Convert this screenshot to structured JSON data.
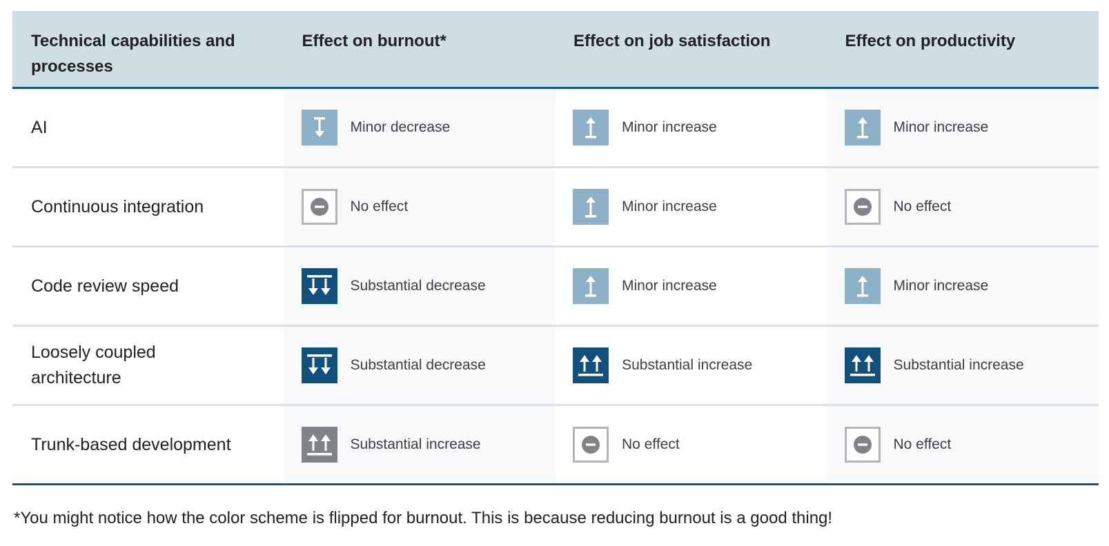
{
  "header": {
    "col1": "Technical capabilities and processes",
    "col2": "Effect on burnout*",
    "col3": "Effect on job satisfaction",
    "col4": "Effect on productivity"
  },
  "rows": [
    {
      "label": "AI",
      "burnout": {
        "text": "Minor decrease",
        "icon": "minor-decrease-icon",
        "color": "#8cb1c6"
      },
      "satisfaction": {
        "text": "Minor increase",
        "icon": "minor-increase-icon",
        "color": "#8cb1c6"
      },
      "productivity": {
        "text": "Minor increase",
        "icon": "minor-increase-icon",
        "color": "#8cb1c6"
      }
    },
    {
      "label": "Continuous integration",
      "burnout": {
        "text": "No effect",
        "icon": "no-effect-icon",
        "color": "#808488"
      },
      "satisfaction": {
        "text": "Minor increase",
        "icon": "minor-increase-icon",
        "color": "#8cb1c6"
      },
      "productivity": {
        "text": "No effect",
        "icon": "no-effect-icon",
        "color": "#808488"
      }
    },
    {
      "label": "Code review speed",
      "burnout": {
        "text": "Substantial decrease",
        "icon": "substantial-decrease-icon",
        "color": "#10507a"
      },
      "satisfaction": {
        "text": "Minor increase",
        "icon": "minor-increase-icon",
        "color": "#8cb1c6"
      },
      "productivity": {
        "text": "Minor increase",
        "icon": "minor-increase-icon",
        "color": "#8cb1c6"
      }
    },
    {
      "label": "Loosely coupled architecture",
      "burnout": {
        "text": "Substantial decrease",
        "icon": "substantial-decrease-icon",
        "color": "#10507a"
      },
      "satisfaction": {
        "text": "Substantial increase",
        "icon": "substantial-increase-icon",
        "color": "#10507a"
      },
      "productivity": {
        "text": "Substantial increase",
        "icon": "substantial-increase-icon",
        "color": "#10507a"
      }
    },
    {
      "label": "Trunk-based development",
      "burnout": {
        "text": "Substantial increase",
        "icon": "substantial-increase-icon",
        "color": "#808488"
      },
      "satisfaction": {
        "text": "No effect",
        "icon": "no-effect-icon",
        "color": "#808488"
      },
      "productivity": {
        "text": "No effect",
        "icon": "no-effect-icon",
        "color": "#808488"
      }
    }
  ],
  "footnote": "*You might notice how the color scheme is flipped for burnout. This is because reducing burnout is a good thing!",
  "colors": {
    "header_bg": "#cfdde5",
    "rule": "#17557a",
    "minor": "#8cb1c6",
    "substantial_good": "#10507a",
    "substantial_bad": "#808488",
    "no_effect_border": "#b1b4b8"
  }
}
